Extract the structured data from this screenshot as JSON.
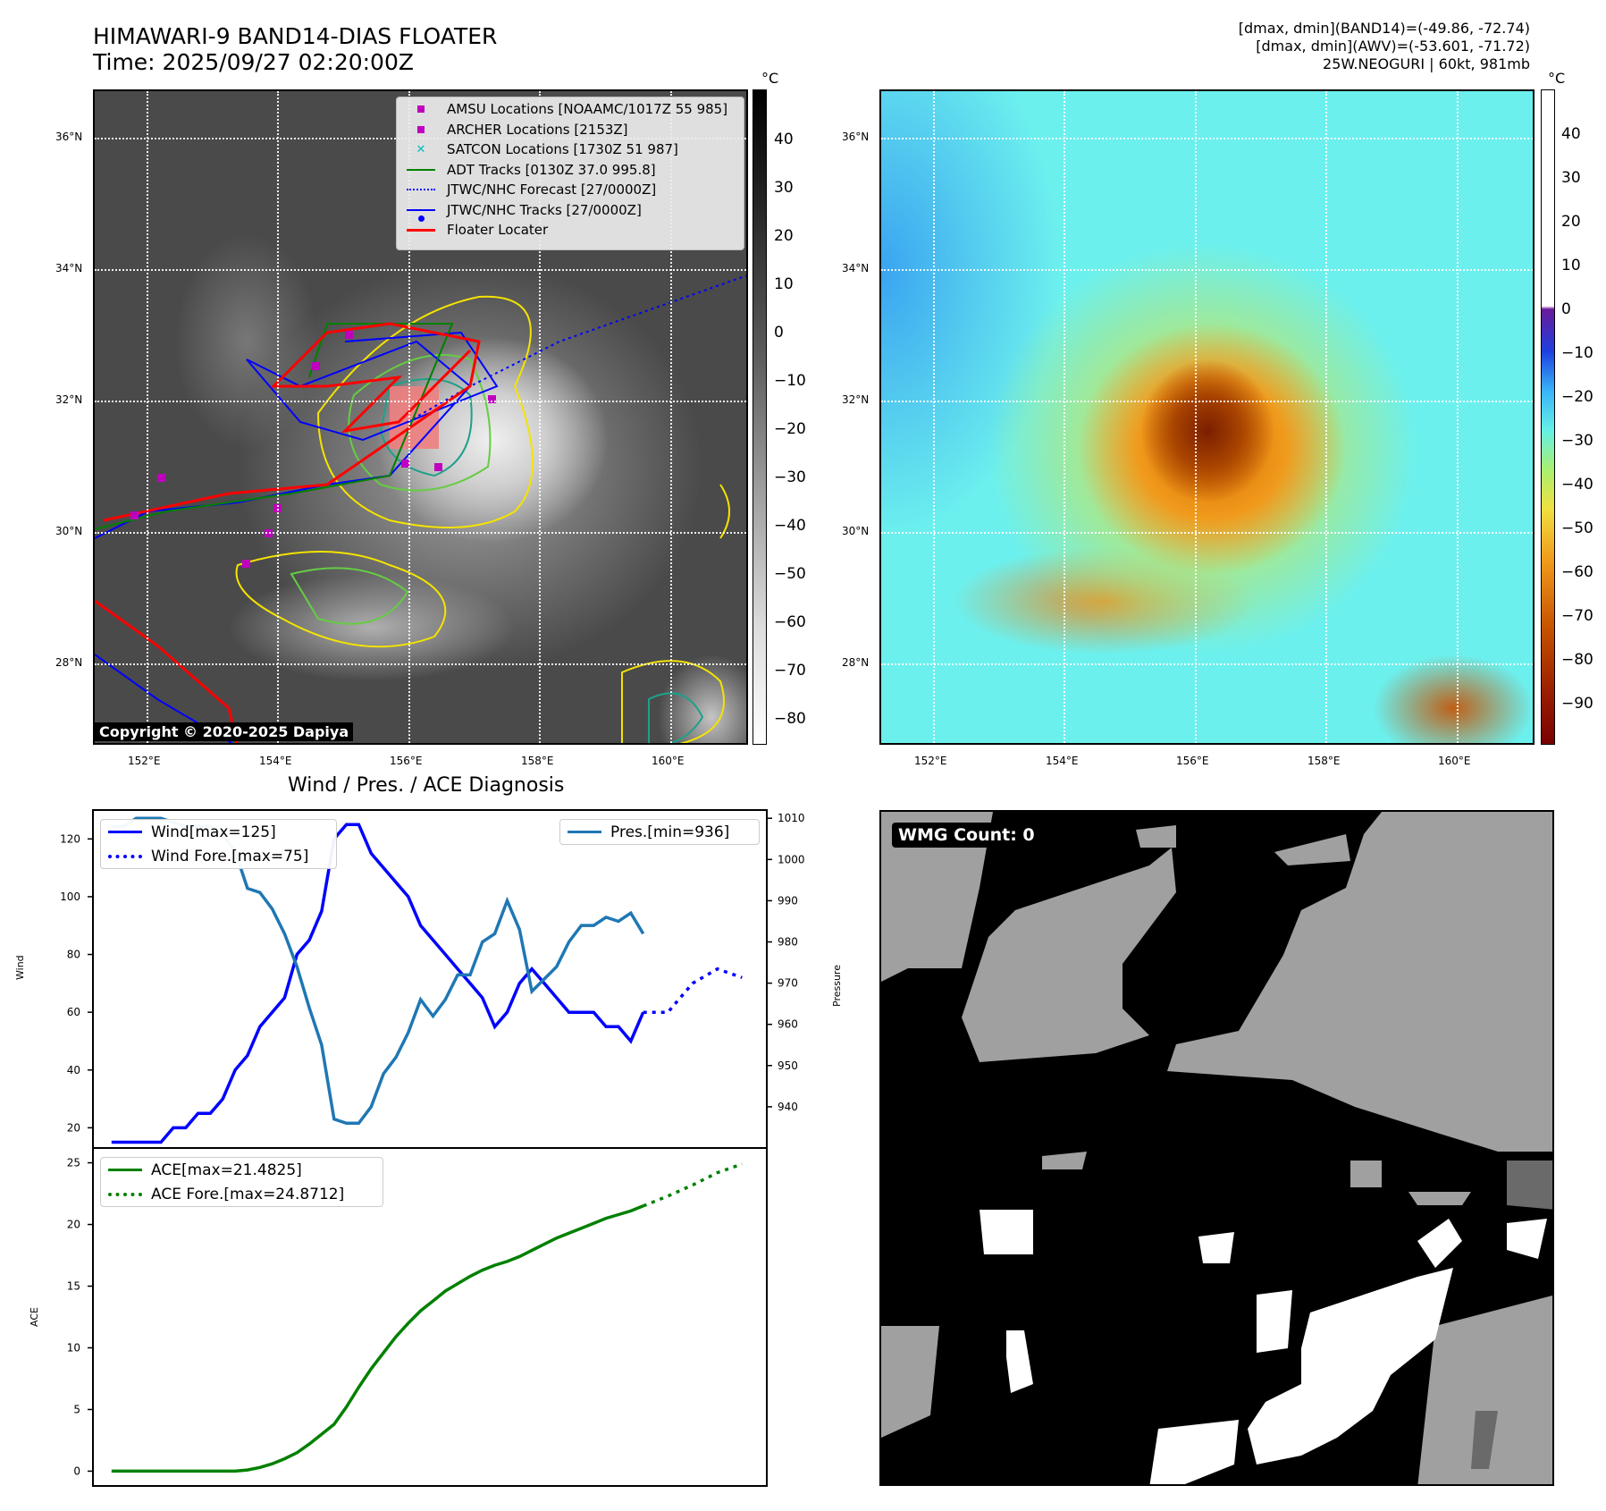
{
  "header": {
    "title_line1": "HIMAWARI-9 BAND14-DIAS FLOATER",
    "title_line2": "Time: 2025/09/27 02:20:00Z",
    "stats_line1": "[dmax, dmin](BAND14)=(-49.86, -72.74)",
    "stats_line2": "[dmax, dmin](AWV)=(-53.601, -71.72)",
    "stats_line3": "25W.NEOGURI | 60kt, 981mb"
  },
  "map_ir": {
    "latitudes": [
      "36°N",
      "34°N",
      "32°N",
      "30°N",
      "28°N"
    ],
    "longitudes": [
      "152°E",
      "154°E",
      "156°E",
      "158°E",
      "160°E"
    ],
    "legend": [
      {
        "label": "AMSU Locations [NOAAMC/1017Z 55 985]",
        "marker": "square",
        "color": "#bf00bf"
      },
      {
        "label": "ARCHER Locations [2153Z]",
        "marker": "square",
        "color": "#bf00bf"
      },
      {
        "label": "SATCON Locations [1730Z 51 987]",
        "marker": "x",
        "color": "#00bfbf"
      },
      {
        "label": "ADT Tracks [0130Z 37.0 995.8]",
        "marker": "line",
        "color": "#008000"
      },
      {
        "label": "JTWC/NHC Forecast [27/0000Z]",
        "marker": "dotted",
        "color": "#0000ff"
      },
      {
        "label": "JTWC/NHC Tracks [27/0000Z]",
        "marker": "line-dot",
        "color": "#0000ff"
      },
      {
        "label": "Floater Locater",
        "marker": "line",
        "color": "#ff0000"
      }
    ],
    "copyright": "Copyright © 2020-2025 Dapiya",
    "colorbar_unit": "°C",
    "colorbar_ticks": [
      "40",
      "30",
      "20",
      "10",
      "0",
      "−10",
      "−20",
      "−30",
      "−40",
      "−50",
      "−60",
      "−70",
      "−80"
    ]
  },
  "map_wv": {
    "latitudes": [
      "36°N",
      "34°N",
      "32°N",
      "30°N",
      "28°N"
    ],
    "longitudes": [
      "152°E",
      "154°E",
      "156°E",
      "158°E",
      "160°E"
    ],
    "colorbar_unit": "°C",
    "colorbar_ticks": [
      "40",
      "30",
      "20",
      "10",
      "0",
      "−10",
      "−20",
      "−30",
      "−40",
      "−50",
      "−60",
      "−70",
      "−80",
      "−90"
    ]
  },
  "chart_data": [
    {
      "type": "line",
      "title": "Wind / Pres. / ACE Diagnosis",
      "ylabel": "Wind",
      "ylabel_right": "Pressure",
      "ylim": [
        13,
        130
      ],
      "ylim_right": [
        930,
        1012
      ],
      "yticks": [
        "120",
        "100",
        "80",
        "60",
        "40",
        "20"
      ],
      "yticks_right": [
        "1010",
        "1000",
        "990",
        "980",
        "970",
        "960",
        "950",
        "940"
      ],
      "series": [
        {
          "name": "Wind[max=125]",
          "color": "#0000ff",
          "style": "solid",
          "axis": "left",
          "x": [
            0,
            1,
            2,
            3,
            4,
            5,
            6,
            7,
            8,
            9,
            10,
            11,
            12,
            13,
            14,
            15,
            16,
            17,
            18,
            19,
            20,
            21,
            22,
            23,
            24,
            25,
            26,
            27,
            28,
            29,
            30,
            31,
            32,
            33,
            34,
            35,
            36,
            37,
            38,
            39,
            40,
            41,
            42,
            43
          ],
          "values": [
            15,
            15,
            15,
            15,
            15,
            20,
            20,
            25,
            25,
            30,
            40,
            45,
            55,
            60,
            65,
            80,
            85,
            95,
            120,
            125,
            125,
            115,
            110,
            105,
            100,
            90,
            85,
            80,
            75,
            70,
            65,
            55,
            60,
            70,
            75,
            70,
            65,
            60,
            60,
            60,
            55,
            55,
            50,
            60
          ]
        },
        {
          "name": "Wind Fore.[max=75]",
          "color": "#0000ff",
          "style": "dotted",
          "axis": "left",
          "x": [
            43,
            45,
            47,
            49,
            51
          ],
          "values": [
            60,
            60,
            70,
            75,
            72
          ]
        },
        {
          "name": "Pres.[min=936]",
          "color": "#1f77b4",
          "style": "solid",
          "axis": "right",
          "x": [
            0,
            1,
            2,
            3,
            4,
            5,
            6,
            7,
            8,
            9,
            10,
            11,
            12,
            13,
            14,
            15,
            16,
            17,
            18,
            19,
            20,
            21,
            22,
            23,
            24,
            25,
            26,
            27,
            28,
            29,
            30,
            31,
            32,
            33,
            34,
            35,
            36,
            37,
            38,
            39,
            40,
            41,
            42,
            43
          ],
          "values": [
            1008,
            1008,
            1010,
            1010,
            1010,
            1009,
            1008,
            1008,
            1008,
            1006,
            1002,
            993,
            992,
            988,
            982,
            974,
            964,
            955,
            937,
            936,
            936,
            940,
            948,
            952,
            958,
            966,
            962,
            966,
            972,
            972,
            980,
            982,
            990,
            983,
            968,
            971,
            974,
            980,
            984,
            984,
            986,
            985,
            987,
            982
          ]
        }
      ]
    },
    {
      "type": "line",
      "ylabel": "ACE",
      "ylim": [
        -1.2,
        26.2
      ],
      "yticks": [
        "25",
        "20",
        "15",
        "10",
        "5",
        "0"
      ],
      "series": [
        {
          "name": "ACE[max=21.4825]",
          "color": "#008000",
          "style": "solid",
          "x": [
            0,
            2,
            4,
            6,
            8,
            10,
            11,
            12,
            13,
            14,
            15,
            16,
            17,
            18,
            19,
            20,
            21,
            22,
            23,
            24,
            25,
            26,
            27,
            28,
            29,
            30,
            31,
            32,
            33,
            34,
            35,
            36,
            37,
            38,
            39,
            40,
            41,
            42,
            43
          ],
          "values": [
            0,
            0,
            0,
            0,
            0,
            0,
            0.1,
            0.3,
            0.6,
            1.0,
            1.5,
            2.2,
            3.0,
            3.8,
            5.2,
            6.8,
            8.3,
            9.6,
            10.9,
            12.0,
            13.0,
            13.8,
            14.6,
            15.2,
            15.8,
            16.3,
            16.7,
            17.0,
            17.4,
            17.9,
            18.4,
            18.9,
            19.3,
            19.7,
            20.1,
            20.5,
            20.8,
            21.1,
            21.5
          ]
        },
        {
          "name": "ACE Fore.[max=24.8712]",
          "color": "#008000",
          "style": "dotted",
          "x": [
            43,
            45,
            47,
            49,
            51
          ],
          "values": [
            21.5,
            22.3,
            23.2,
            24.2,
            24.9
          ]
        }
      ]
    }
  ],
  "wmg_panel": {
    "label": "WMG Count: 0"
  }
}
